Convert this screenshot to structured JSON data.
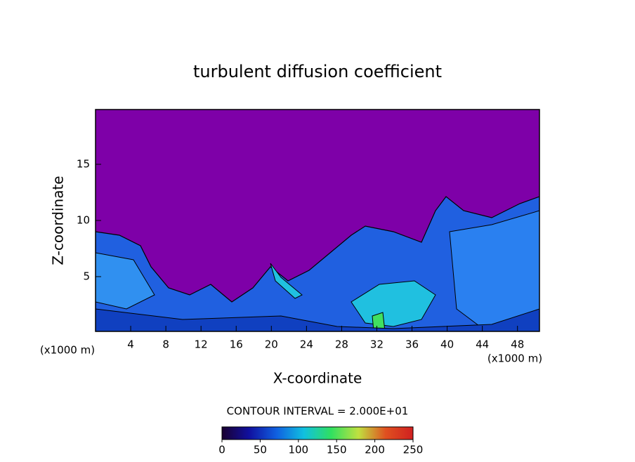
{
  "chart_data": {
    "type": "contour",
    "title": "turbulent diffusion coefficient",
    "x_label": "X-coordinate",
    "y_label": "Z-coordinate",
    "x_unit": "(x1000 m)",
    "xlim": [
      0,
      50.5
    ],
    "xticks": [
      4,
      8,
      12,
      16,
      20,
      24,
      28,
      32,
      36,
      40,
      44,
      48
    ],
    "ylim": [
      0.125,
      19.875
    ],
    "yticks": [
      5,
      10,
      15
    ],
    "contour_label": "CONTOUR INTERVAL = 2.000E+01",
    "colorbar_lim": [
      0,
      250
    ],
    "colorbar_ticks": [
      0,
      50,
      100,
      150,
      200,
      250
    ],
    "colormap": [
      "#1a0030",
      "#1010a0",
      "#1060e0",
      "#10c0e0",
      "#30e060",
      "#c0e040",
      "#e05020",
      "#d02020"
    ],
    "field_color": "#7e00a8"
  }
}
